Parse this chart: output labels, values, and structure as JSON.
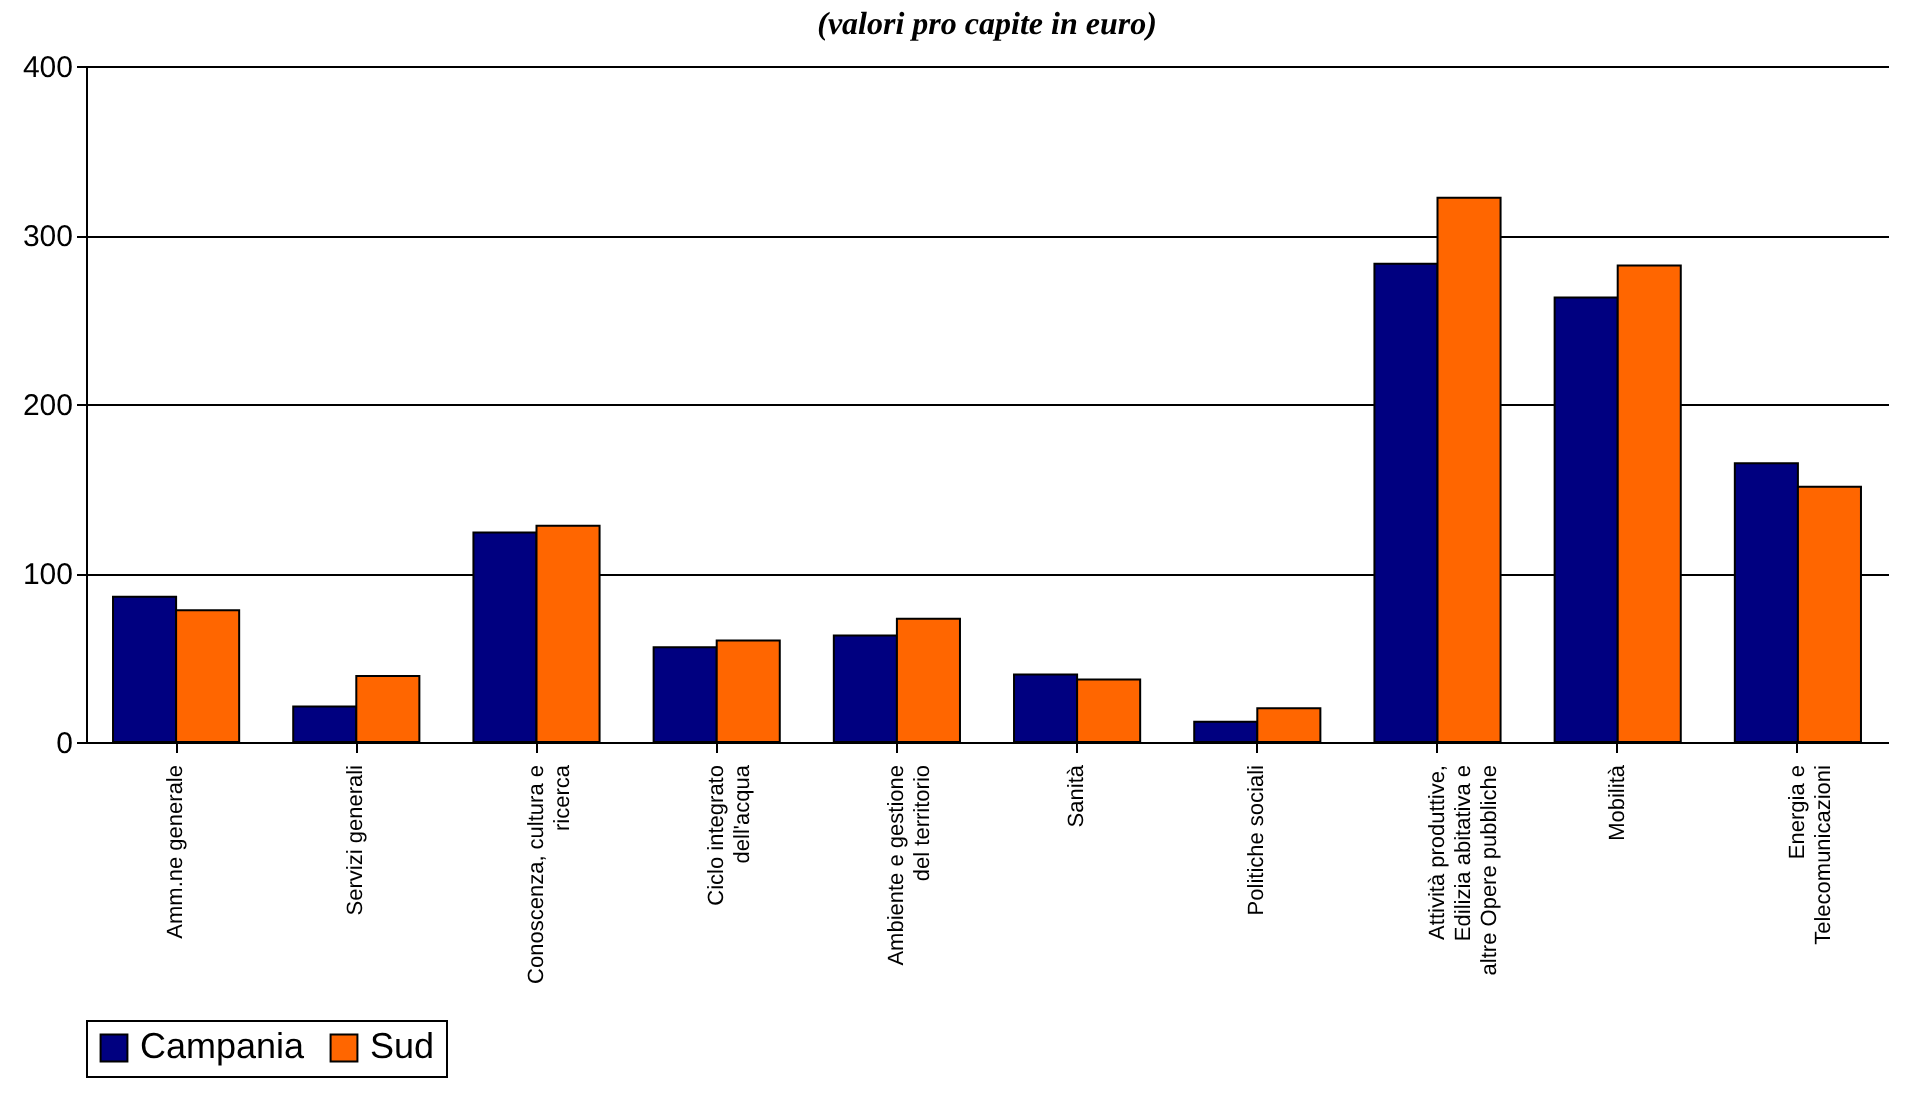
{
  "chart_data": {
    "type": "bar",
    "title": "(valori pro capite in euro)",
    "categories": [
      "Amm.ne generale",
      "Servizi generali",
      "Conoscenza, cultura e ricerca",
      "Ciclo integrato dell'acqua",
      "Ambiente e gestione del territorio",
      "Sanità",
      "Politiche sociali",
      "Attività produttive, Edilizia abitativa e altre Opere pubbliche",
      "Mobilità",
      "Energia e Telecomunicazioni"
    ],
    "series": [
      {
        "name": "Campania",
        "color": "#000080",
        "values": [
          86,
          21,
          124,
          56,
          63,
          40,
          12,
          283,
          263,
          165
        ]
      },
      {
        "name": "Sud",
        "color": "#ff6600",
        "values": [
          78,
          39,
          128,
          60,
          73,
          37,
          20,
          322,
          282,
          151
        ]
      }
    ],
    "ylim": [
      0,
      400
    ],
    "yticks": [
      0,
      100,
      200,
      300,
      400
    ],
    "grid": "y",
    "legend": "bottom"
  }
}
